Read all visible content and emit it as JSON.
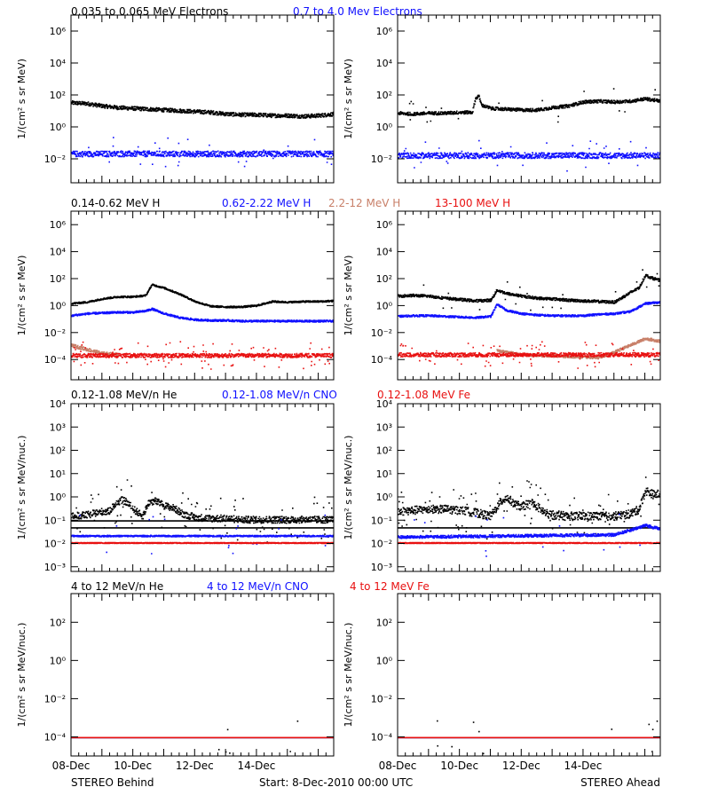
{
  "colors": {
    "black": "#000000",
    "blue": "#1010ff",
    "tan": "#c87f68",
    "red": "#e81010"
  },
  "row_titles": [
    [
      {
        "text": "0.035 to 0.065 MeV Electrons",
        "color": "#000000"
      },
      {
        "text": "0.7 to 4.0 Mev Electrons",
        "color": "#1010ff"
      }
    ],
    [
      {
        "text": "0.14-0.62 MeV H",
        "color": "#000000"
      },
      {
        "text": "0.62-2.22 MeV H",
        "color": "#1010ff"
      },
      {
        "text": "2.2-12 MeV H",
        "color": "#c87f68"
      },
      {
        "text": "13-100 MeV H",
        "color": "#e81010"
      }
    ],
    [
      {
        "text": "0.12-1.08 MeV/n He",
        "color": "#000000"
      },
      {
        "text": "0.12-1.08 MeV/n CNO",
        "color": "#1010ff"
      },
      {
        "text": "0.12-1.08 MeV Fe",
        "color": "#e81010"
      }
    ],
    [
      {
        "text": "4 to 12 MeV/n He",
        "color": "#000000"
      },
      {
        "text": "4 to 12 MeV/n CNO",
        "color": "#1010ff"
      },
      {
        "text": "4 to 12 MeV Fe",
        "color": "#e81010"
      }
    ]
  ],
  "footer": {
    "left": "STEREO Behind",
    "center": "Start:  8-Dec-2010 00:00 UTC",
    "right": "STEREO Ahead"
  },
  "chart_data": [
    {
      "type": "scatter",
      "row": 0,
      "col": 0,
      "yscale": "log",
      "ylabel": "1/(cm² s sr MeV)",
      "yticks": [
        "10⁻²",
        "10⁰",
        "10²",
        "10⁴",
        "10⁶"
      ],
      "ytick_exps": [
        -2,
        0,
        2,
        4,
        6
      ],
      "ylim_exp": [
        -3.5,
        7
      ],
      "xlim": [
        0,
        8.5
      ],
      "series": [
        {
          "name": "0.035 to 0.065 MeV Electrons",
          "color": "#000000",
          "x": [
            0,
            0.5,
            1,
            1.5,
            2,
            2.5,
            3,
            3.5,
            4,
            4.5,
            5,
            5.5,
            6,
            6.5,
            7,
            7.5,
            8,
            8.5
          ],
          "y_exp": [
            1.55,
            1.5,
            1.35,
            1.25,
            1.2,
            1.15,
            1.1,
            1.05,
            1.0,
            0.95,
            0.85,
            0.8,
            0.8,
            0.75,
            0.75,
            0.7,
            0.75,
            0.85
          ],
          "scatter": 0.12,
          "outliers": 0
        },
        {
          "color": "#1010ff",
          "x": [
            0,
            8.5
          ],
          "y_exp": [
            -1.65,
            -1.65
          ],
          "scatter": 0.18,
          "outliers": 0.02
        }
      ]
    },
    {
      "type": "scatter",
      "row": 0,
      "col": 1,
      "yscale": "log",
      "ylabel": "1/(cm² s sr MeV)",
      "yticks": [
        "10⁻²",
        "10⁰",
        "10²",
        "10⁴",
        "10⁶"
      ],
      "ytick_exps": [
        -2,
        0,
        2,
        4,
        6
      ],
      "ylim_exp": [
        -3.5,
        7
      ],
      "xlim": [
        0,
        8.5
      ],
      "series": [
        {
          "color": "#000000",
          "x": [
            0,
            0.5,
            1,
            1.5,
            2,
            2.4,
            2.5,
            2.6,
            2.7,
            3,
            3.5,
            4,
            4.5,
            5,
            5.5,
            6,
            6.5,
            7,
            7.5,
            8,
            8.5
          ],
          "y_exp": [
            0.9,
            0.85,
            0.9,
            0.9,
            0.95,
            0.95,
            1.8,
            2.0,
            1.4,
            1.2,
            1.15,
            1.1,
            1.1,
            1.25,
            1.35,
            1.6,
            1.65,
            1.6,
            1.65,
            1.8,
            1.65
          ],
          "scatter": 0.1,
          "outliers": 0.02
        },
        {
          "color": "#1010ff",
          "x": [
            0,
            8.5
          ],
          "y_exp": [
            -1.75,
            -1.75
          ],
          "scatter": 0.18,
          "outliers": 0.03
        }
      ]
    },
    {
      "type": "scatter",
      "row": 1,
      "col": 0,
      "yscale": "log",
      "ylabel": "1/(cm² s sr MeV)",
      "yticks": [
        "10⁻⁴",
        "10⁻²",
        "10⁰",
        "10²",
        "10⁴",
        "10⁶"
      ],
      "ytick_exps": [
        -4,
        -2,
        0,
        2,
        4,
        6
      ],
      "ylim_exp": [
        -5.5,
        7
      ],
      "xlim": [
        0,
        8.5
      ],
      "series": [
        {
          "name": "0.14-0.62 MeV H",
          "color": "#000000",
          "x": [
            0,
            0.5,
            1,
            1.5,
            2,
            2.4,
            2.6,
            3,
            3.5,
            4,
            4.5,
            5,
            5.5,
            6,
            6.5,
            7,
            7.5,
            8,
            8.5
          ],
          "y_exp": [
            0.2,
            0.3,
            0.55,
            0.7,
            0.7,
            0.8,
            1.6,
            1.35,
            0.9,
            0.35,
            0.0,
            -0.05,
            -0.05,
            0.05,
            0.35,
            0.3,
            0.35,
            0.35,
            0.4
          ],
          "scatter": 0.06,
          "outliers": 0
        },
        {
          "name": "0.62-2.22 MeV H",
          "color": "#1010ff",
          "x": [
            0,
            0.5,
            1,
            1.5,
            2,
            2.4,
            2.6,
            3,
            3.5,
            4,
            4.5,
            5,
            5.5,
            6,
            6.5,
            7,
            7.5,
            8,
            8.5
          ],
          "y_exp": [
            -0.7,
            -0.55,
            -0.5,
            -0.45,
            -0.45,
            -0.35,
            -0.2,
            -0.55,
            -0.85,
            -1.0,
            -1.05,
            -1.05,
            -1.1,
            -1.1,
            -1.1,
            -1.1,
            -1.1,
            -1.1,
            -1.1
          ],
          "scatter": 0.07,
          "outliers": 0
        },
        {
          "name": "2.2-12 MeV H",
          "color": "#c87f68",
          "x": [
            0,
            0.5,
            1,
            1.5
          ],
          "y_exp": [
            -2.9,
            -3.2,
            -3.5,
            -3.6
          ],
          "scatter": 0.12,
          "outliers": 0
        },
        {
          "name": "13-100 MeV H",
          "color": "#e81010",
          "x": [
            0,
            8.5
          ],
          "y_exp": [
            -3.65,
            -3.65
          ],
          "scatter": 0.15,
          "outliers": 0.06
        }
      ]
    },
    {
      "type": "scatter",
      "row": 1,
      "col": 1,
      "yscale": "log",
      "ylabel": "1/(cm² s sr MeV)",
      "yticks": [
        "10⁻⁴",
        "10⁻²",
        "10⁰",
        "10²",
        "10⁴",
        "10⁶"
      ],
      "ytick_exps": [
        -4,
        -2,
        0,
        2,
        4,
        6
      ],
      "ylim_exp": [
        -5.5,
        7
      ],
      "xlim": [
        0,
        8.5
      ],
      "series": [
        {
          "color": "#000000",
          "x": [
            0,
            0.5,
            1,
            1.5,
            2,
            2.5,
            3,
            3.2,
            3.5,
            4,
            4.5,
            5,
            5.5,
            6,
            6.5,
            7,
            7.5,
            7.8,
            8,
            8.2,
            8.5
          ],
          "y_exp": [
            0.75,
            0.8,
            0.75,
            0.6,
            0.5,
            0.4,
            0.45,
            1.2,
            0.95,
            0.75,
            0.6,
            0.55,
            0.45,
            0.4,
            0.35,
            0.3,
            1.0,
            1.4,
            2.3,
            2.1,
            1.9
          ],
          "scatter": 0.1,
          "outliers": 0.02
        },
        {
          "color": "#1010ff",
          "x": [
            0,
            0.5,
            1,
            1.5,
            2,
            2.5,
            3,
            3.2,
            3.5,
            4,
            4.5,
            5,
            5.5,
            6,
            6.5,
            7,
            7.5,
            8,
            8.5
          ],
          "y_exp": [
            -0.75,
            -0.7,
            -0.7,
            -0.75,
            -0.8,
            -0.85,
            -0.75,
            0.15,
            -0.3,
            -0.55,
            -0.65,
            -0.7,
            -0.7,
            -0.7,
            -0.6,
            -0.55,
            -0.4,
            0.2,
            0.3
          ],
          "scatter": 0.07,
          "outliers": 0
        },
        {
          "color": "#c87f68",
          "x": [
            3.2,
            3.5,
            4,
            6.5,
            7,
            7.5,
            8,
            8.5
          ],
          "y_exp": [
            -3.3,
            -3.4,
            -3.6,
            -3.8,
            -3.4,
            -2.9,
            -2.4,
            -2.6
          ],
          "scatter": 0.1,
          "outliers": 0
        },
        {
          "color": "#e81010",
          "x": [
            0,
            8.5
          ],
          "y_exp": [
            -3.6,
            -3.6
          ],
          "scatter": 0.15,
          "outliers": 0.06
        }
      ]
    },
    {
      "type": "scatter",
      "row": 2,
      "col": 0,
      "yscale": "log",
      "ylabel": "1/(cm² s sr MeV/nuc.)",
      "yticks": [
        "10⁻³",
        "10⁻²",
        "10⁻¹",
        "10⁰",
        "10¹",
        "10²",
        "10³",
        "10⁴"
      ],
      "ytick_exps": [
        -3,
        -2,
        -1,
        0,
        1,
        2,
        3,
        4
      ],
      "ylim_exp": [
        -3.2,
        4
      ],
      "xlim": [
        0,
        8.5
      ],
      "series": [
        {
          "name": "0.12-1.08 MeV/n He",
          "color": "#000000",
          "x": [
            0,
            0.5,
            1,
            1.2,
            1.4,
            1.6,
            1.8,
            2,
            2.3,
            2.5,
            2.7,
            3,
            3.3,
            3.6,
            4,
            4.5,
            5,
            5.5,
            6,
            6.5,
            7,
            7.5,
            8,
            8.5
          ],
          "y_exp": [
            -0.8,
            -0.75,
            -0.6,
            -0.6,
            -0.3,
            -0.1,
            -0.2,
            -0.5,
            -0.8,
            -0.2,
            -0.15,
            -0.35,
            -0.45,
            -0.7,
            -0.85,
            -0.9,
            -0.9,
            -0.95,
            -0.95,
            -0.95,
            -0.95,
            -0.95,
            -0.95,
            -0.95
          ],
          "scatter": 0.15,
          "outliers": 0.08
        },
        {
          "color": "#000000",
          "x": [
            0,
            8.5
          ],
          "y_exp": [
            -1.3,
            -1.3
          ],
          "scatter": 0.0,
          "outliers": 0
        },
        {
          "color": "#000000",
          "x": [
            0,
            8.5
          ],
          "y_exp": [
            -1.0,
            -1.0
          ],
          "scatter": 0.0,
          "outliers": 0
        },
        {
          "name": "0.12-1.08 MeV/n CNO",
          "color": "#1010ff",
          "x": [
            0,
            8.5
          ],
          "y_exp": [
            -1.65,
            -1.65
          ],
          "scatter": 0.03,
          "outliers": 0.02
        },
        {
          "name": "0.12-1.08 MeV Fe",
          "color": "#e81010",
          "x": [
            0,
            8.5
          ],
          "y_exp": [
            -1.95,
            -1.95
          ],
          "scatter": 0.02,
          "outliers": 0
        }
      ]
    },
    {
      "type": "scatter",
      "row": 2,
      "col": 1,
      "yscale": "log",
      "ylabel": "1/(cm² s sr MeV/nuc.)",
      "yticks": [
        "10⁻³",
        "10⁻²",
        "10⁻¹",
        "10⁰",
        "10¹",
        "10²",
        "10³",
        "10⁴"
      ],
      "ytick_exps": [
        -3,
        -2,
        -1,
        0,
        1,
        2,
        3,
        4
      ],
      "ylim_exp": [
        -3.2,
        4
      ],
      "xlim": [
        0,
        8.5
      ],
      "series": [
        {
          "color": "#000000",
          "x": [
            0,
            0.5,
            1,
            1.5,
            2,
            2.5,
            3,
            3.3,
            3.5,
            3.8,
            4,
            4.3,
            4.5,
            4.8,
            5,
            5.5,
            6,
            6.5,
            7,
            7.5,
            7.8,
            8,
            8.3,
            8.5
          ],
          "y_exp": [
            -0.6,
            -0.55,
            -0.5,
            -0.5,
            -0.55,
            -0.65,
            -0.8,
            -0.2,
            0.0,
            -0.3,
            -0.4,
            -0.2,
            -0.4,
            -0.7,
            -0.75,
            -0.8,
            -0.8,
            -0.8,
            -0.8,
            -0.7,
            -0.5,
            0.3,
            0.1,
            0.2
          ],
          "scatter": 0.18,
          "outliers": 0.08
        },
        {
          "color": "#000000",
          "x": [
            0,
            8.5
          ],
          "y_exp": [
            -1.3,
            -1.3
          ],
          "scatter": 0.0,
          "outliers": 0
        },
        {
          "color": "#1010ff",
          "x": [
            0,
            7,
            7.5,
            8,
            8.5
          ],
          "y_exp": [
            -1.7,
            -1.6,
            -1.4,
            -1.2,
            -1.35
          ],
          "scatter": 0.06,
          "outliers": 0.02
        },
        {
          "color": "#e81010",
          "x": [
            0,
            8.5
          ],
          "y_exp": [
            -1.95,
            -1.95
          ],
          "scatter": 0.02,
          "outliers": 0
        }
      ]
    },
    {
      "type": "scatter",
      "row": 3,
      "col": 0,
      "yscale": "log",
      "ylabel": "1/(cm² s sr MeV/nuc.)",
      "yticks": [
        "10⁻⁴",
        "10⁻²",
        "10⁰",
        "10²"
      ],
      "ytick_exps": [
        -4,
        -2,
        0,
        2
      ],
      "ylim_exp": [
        -5,
        3.5
      ],
      "xlim": [
        0,
        8.5
      ],
      "series": [
        {
          "color": "#000000",
          "x": [
            0,
            8.5
          ],
          "y_exp": [
            -4,
            -4
          ],
          "scatter": 0,
          "outliers": 0.01
        },
        {
          "color": "#1010ff",
          "x": [
            0,
            8.5
          ],
          "y_exp": [
            -4,
            -4
          ],
          "scatter": 0,
          "outliers": 0
        },
        {
          "color": "#e81010",
          "x": [
            0,
            8.5
          ],
          "y_exp": [
            -4,
            -4
          ],
          "scatter": 0,
          "outliers": 0
        }
      ]
    },
    {
      "type": "scatter",
      "row": 3,
      "col": 1,
      "yscale": "log",
      "ylabel": "1/(cm² s sr MeV/nuc.)",
      "yticks": [
        "10⁻⁴",
        "10⁻²",
        "10⁰",
        "10²"
      ],
      "ytick_exps": [
        -4,
        -2,
        0,
        2
      ],
      "ylim_exp": [
        -5,
        3.5
      ],
      "xlim": [
        0,
        8.5
      ],
      "series": [
        {
          "color": "#000000",
          "x": [
            0,
            8.5
          ],
          "y_exp": [
            -4,
            -4
          ],
          "scatter": 0,
          "outliers": 0.01
        },
        {
          "color": "#1010ff",
          "x": [
            0,
            8.5
          ],
          "y_exp": [
            -4,
            -4
          ],
          "scatter": 0,
          "outliers": 0
        },
        {
          "color": "#e81010",
          "x": [
            0,
            8.5
          ],
          "y_exp": [
            -4,
            -4
          ],
          "scatter": 0,
          "outliers": 0
        }
      ]
    }
  ],
  "xaxis": {
    "tick_days": [
      0,
      2,
      4,
      6,
      8
    ],
    "tick_labels": [
      "08-Dec",
      "10-Dec",
      "12-Dec",
      "14-Dec",
      ""
    ],
    "minor_per_day": 4
  }
}
